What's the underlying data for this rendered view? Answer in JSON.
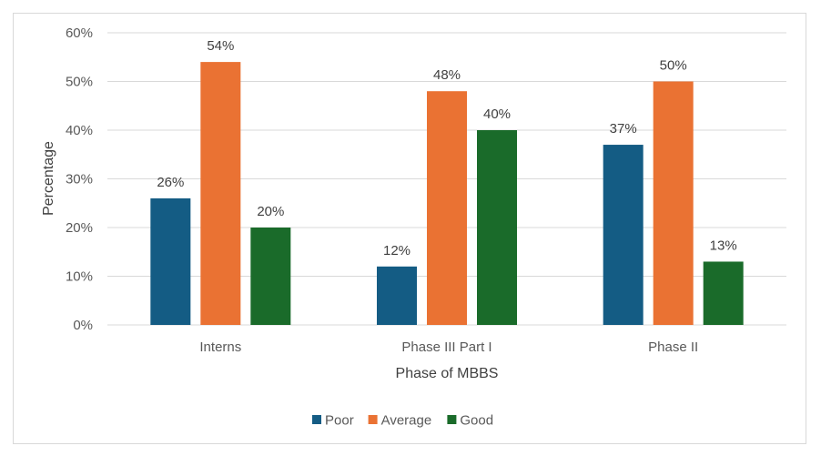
{
  "chart_data": {
    "type": "bar",
    "categories": [
      "Interns",
      "Phase III Part I",
      "Phase II"
    ],
    "series": [
      {
        "name": "Poor",
        "values": [
          26,
          12,
          37
        ],
        "labels": [
          "26%",
          "12%",
          "37%"
        ],
        "color": "#145c84"
      },
      {
        "name": "Average",
        "values": [
          54,
          48,
          50
        ],
        "labels": [
          "54%",
          "48%",
          "50%"
        ],
        "color": "#ea7233"
      },
      {
        "name": "Good",
        "values": [
          20,
          40,
          13
        ],
        "labels": [
          "20%",
          "40%",
          "13%"
        ],
        "color": "#1a6b2a"
      }
    ],
    "title": "",
    "xlabel": "Phase of MBBS",
    "ylabel": "Percentage",
    "ylim": [
      0,
      60
    ],
    "yticks": [
      0,
      10,
      20,
      30,
      40,
      50,
      60
    ],
    "ytick_labels": [
      "0%",
      "10%",
      "20%",
      "30%",
      "40%",
      "50%",
      "60%"
    ],
    "grid": true,
    "legend": "bottom"
  }
}
